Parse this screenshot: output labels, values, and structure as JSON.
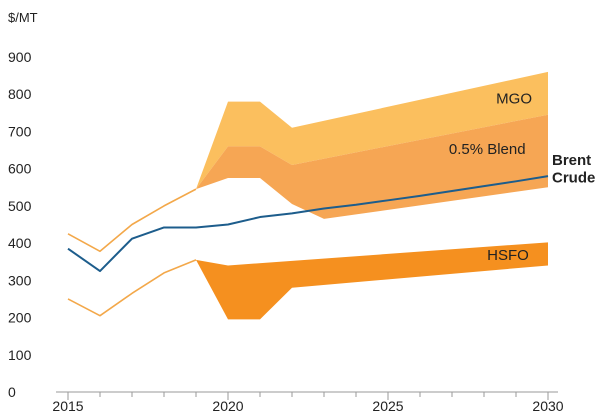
{
  "chart_data": {
    "type": "area",
    "title": "",
    "ylabel": "$/MT",
    "xlabel": "",
    "xlim": [
      2015,
      2030
    ],
    "ylim": [
      0,
      900
    ],
    "yticks": [
      0,
      100,
      200,
      300,
      400,
      500,
      600,
      700,
      800,
      900
    ],
    "xtick_labels": [
      {
        "value": 2015,
        "label": "2015"
      },
      {
        "value": 2020,
        "label": "2020"
      },
      {
        "value": 2025,
        "label": "2025"
      },
      {
        "value": 2030,
        "label": "2030"
      }
    ],
    "grid": false,
    "colors": {
      "mgo": "#fbbf5e",
      "blend": "#f6a654",
      "hsfo": "#f5901f",
      "brent": "#1d5d8c",
      "outline": "#f3a84a",
      "axis": "#9a9a9a",
      "text": "#222222"
    },
    "bands": [
      {
        "name": "MGO",
        "upper": [
          [
            2019,
            545
          ],
          [
            2020,
            780
          ],
          [
            2021,
            780
          ],
          [
            2022,
            710
          ],
          [
            2030,
            860
          ]
        ],
        "lower": [
          [
            2019,
            545
          ],
          [
            2020,
            660
          ],
          [
            2021,
            660
          ],
          [
            2022,
            610
          ],
          [
            2030,
            745
          ]
        ]
      },
      {
        "name": "0.5% Blend",
        "upper": [
          [
            2019,
            545
          ],
          [
            2020,
            660
          ],
          [
            2021,
            660
          ],
          [
            2022,
            610
          ],
          [
            2030,
            745
          ]
        ],
        "lower": [
          [
            2019,
            545
          ],
          [
            2020,
            575
          ],
          [
            2021,
            575
          ],
          [
            2022,
            505
          ],
          [
            2023,
            465
          ],
          [
            2030,
            550
          ]
        ]
      },
      {
        "name": "HSFO",
        "upper": [
          [
            2019,
            355
          ],
          [
            2020,
            340
          ],
          [
            2030,
            402
          ]
        ],
        "lower": [
          [
            2019,
            355
          ],
          [
            2020,
            195
          ],
          [
            2021,
            195
          ],
          [
            2022,
            280
          ],
          [
            2030,
            340
          ]
        ]
      }
    ],
    "series": [
      {
        "name": "Brent Crude",
        "x": [
          2015,
          2016,
          2017,
          2018,
          2019,
          2020,
          2021,
          2022,
          2023,
          2024,
          2025,
          2026,
          2027,
          2028,
          2029,
          2030
        ],
        "values": [
          385,
          325,
          412,
          442,
          442,
          450,
          470,
          480,
          493,
          503,
          515,
          527,
          540,
          553,
          566,
          580
        ]
      },
      {
        "name": "",
        "x": [
          2015,
          2016,
          2017,
          2018,
          2019
        ],
        "values": [
          425,
          378,
          450,
          500,
          545
        ]
      },
      {
        "name": "",
        "x": [
          2015,
          2016,
          2017,
          2018,
          2019
        ],
        "values": [
          250,
          205,
          265,
          320,
          355
        ]
      }
    ],
    "annotations": [
      {
        "text": "MGO",
        "x": 2029.5,
        "y": 775
      },
      {
        "text": "0.5% Blend",
        "x": 2029.3,
        "y": 640
      },
      {
        "text": "Brent",
        "x": 2030,
        "y": 610
      },
      {
        "text": "Crude",
        "x": 2030,
        "y": 563
      },
      {
        "text": "HSFO",
        "x": 2029.4,
        "y": 355
      }
    ]
  }
}
